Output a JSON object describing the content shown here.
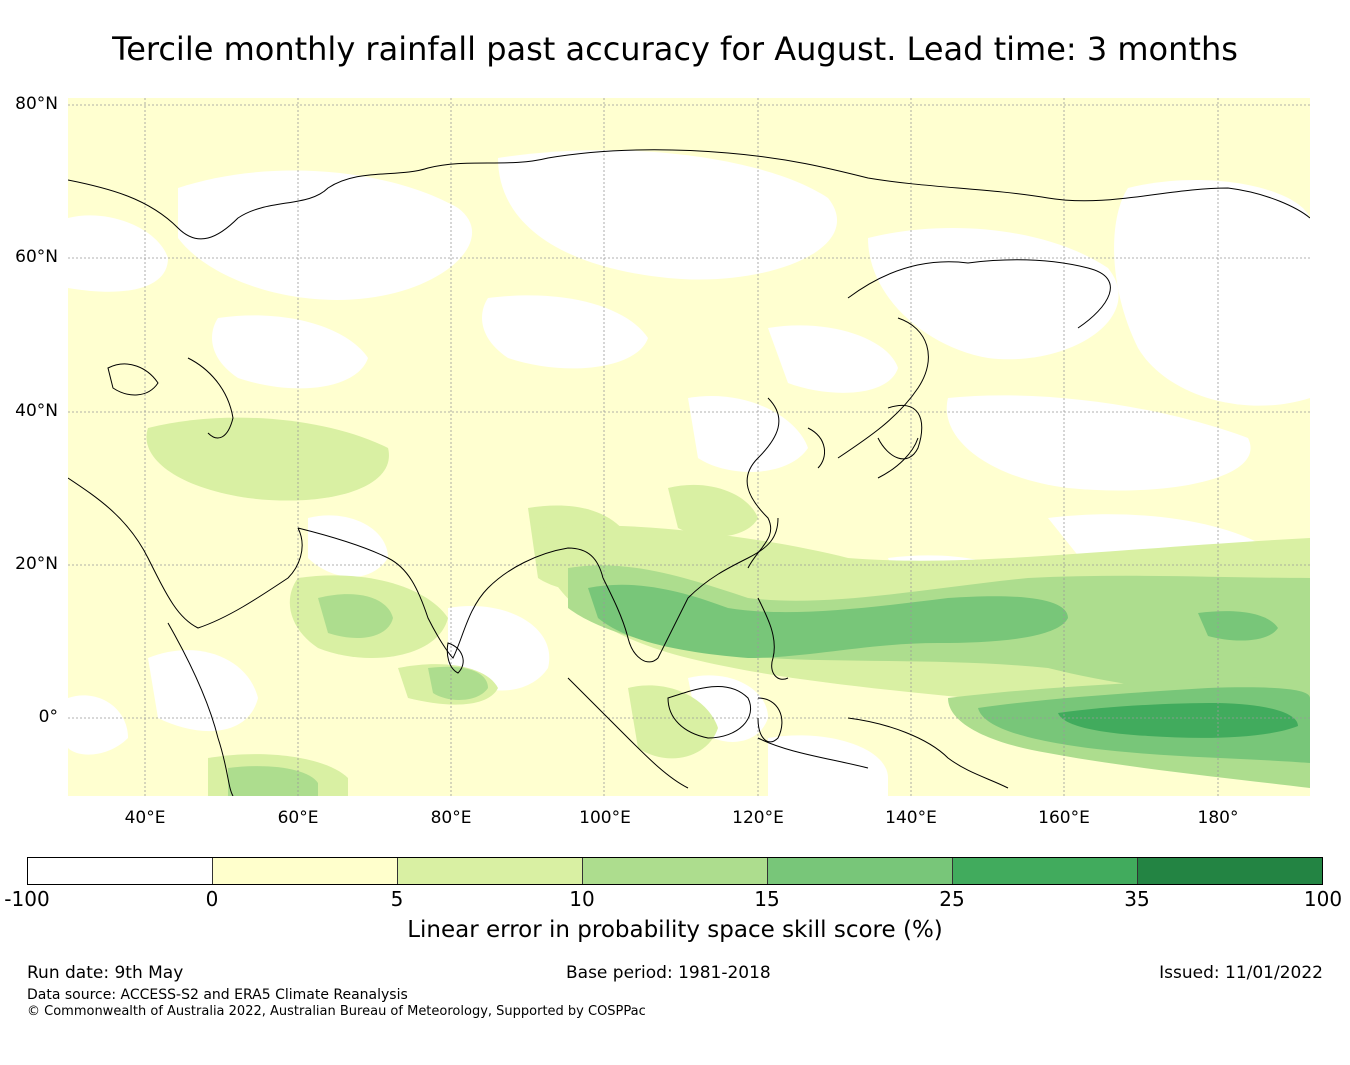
{
  "title": "Tercile monthly rainfall past accuracy for August. Lead time: 3 months",
  "map": {
    "lat_labels": [
      "80°N",
      "60°N",
      "40°N",
      "20°N",
      "0°"
    ],
    "lon_labels": [
      "40°E",
      "60°E",
      "80°E",
      "100°E",
      "120°E",
      "140°E",
      "160°E",
      "180°"
    ],
    "colors": [
      "#ffffff",
      "#ffffcc",
      "#d9f0a3",
      "#addd8e",
      "#78c679",
      "#41ab5d",
      "#238443"
    ]
  },
  "colorbar": {
    "ticks": [
      "-100",
      "0",
      "5",
      "10",
      "15",
      "25",
      "35",
      "100"
    ],
    "label": "Linear error in probability space skill score (%)"
  },
  "footer": {
    "run_date": "Run date: 9th May",
    "base_period": "Base period: 1981-2018",
    "issued": "Issued: 11/01/2022",
    "data_source": "Data source: ACCESS-S2 and ERA5 Climate Reanalysis",
    "copyright": "© Commonwealth of Australia 2022, Australian Bureau of Meteorology, Supported by COSPPac"
  }
}
